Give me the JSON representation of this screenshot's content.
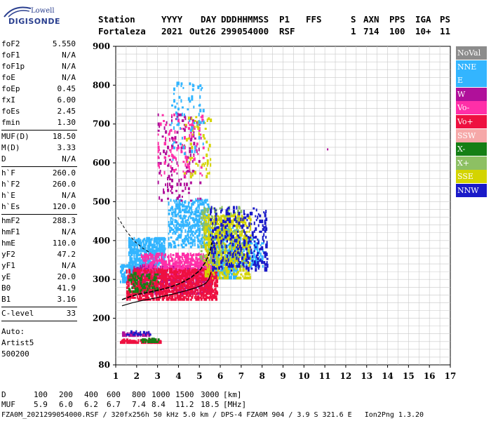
{
  "logo": {
    "line1": "Lowell",
    "line2": "DIGISONDE"
  },
  "header": {
    "row1": [
      "Station",
      "YYYY",
      "DAY",
      "DDD",
      "HHMMSS",
      "P1",
      "FFS",
      "S",
      "AXN",
      "PPS",
      "IGA",
      "PS"
    ],
    "row2": [
      "Fortaleza",
      "2021",
      "Out26",
      "299",
      "054000",
      "RSF",
      "",
      "1",
      "714",
      "100",
      "10+",
      "11"
    ]
  },
  "params": {
    "group1": [
      {
        "name": "foF2",
        "value": "5.550"
      },
      {
        "name": "foF1",
        "value": "N/A"
      },
      {
        "name": "foF1p",
        "value": "N/A"
      },
      {
        "name": "foE",
        "value": "N/A"
      },
      {
        "name": "foEp",
        "value": "0.45"
      },
      {
        "name": "fxI",
        "value": "6.00"
      },
      {
        "name": "foEs",
        "value": "2.45"
      },
      {
        "name": "fmin",
        "value": "1.30"
      }
    ],
    "group2": [
      {
        "name": "MUF(D)",
        "value": "18.50"
      },
      {
        "name": "M(D)",
        "value": "3.33"
      },
      {
        "name": "D",
        "value": "N/A"
      }
    ],
    "group3": [
      {
        "name": "h`F",
        "value": "260.0"
      },
      {
        "name": "h`F2",
        "value": "260.0"
      },
      {
        "name": "h`E",
        "value": "N/A"
      },
      {
        "name": "h`Es",
        "value": "120.0"
      }
    ],
    "group4": [
      {
        "name": "hmF2",
        "value": "288.3"
      },
      {
        "name": "hmF1",
        "value": "N/A"
      },
      {
        "name": "hmE",
        "value": "110.0"
      },
      {
        "name": "yF2",
        "value": "47.2"
      },
      {
        "name": "yF1",
        "value": "N/A"
      },
      {
        "name": "yE",
        "value": "20.0"
      },
      {
        "name": "B0",
        "value": "41.9"
      },
      {
        "name": "B1",
        "value": "3.16"
      }
    ],
    "clevel": {
      "name": "C-level",
      "value": "33"
    },
    "auto": [
      "Auto:",
      "Artist5",
      "500200"
    ]
  },
  "legend": [
    {
      "label": "NoVal",
      "color": "#8c8c8c"
    },
    {
      "label": "NNE",
      "color": "#33b5ff"
    },
    {
      "label": "E",
      "color": "#33b5ff"
    },
    {
      "label": "W",
      "color": "#b0109a"
    },
    {
      "label": "Vo-",
      "color": "#ff2fa8"
    },
    {
      "label": "Vo+",
      "color": "#ee1040"
    },
    {
      "label": "SSW",
      "color": "#f6a8a8"
    },
    {
      "label": "X-",
      "color": "#157f15"
    },
    {
      "label": "X+",
      "color": "#8dc063"
    },
    {
      "label": "SSE",
      "color": "#d4d400"
    },
    {
      "label": "NNW",
      "color": "#1a1ac8"
    }
  ],
  "footer": {
    "d_label": "D",
    "d_values": [
      "100",
      "200",
      "400",
      "600",
      "800",
      "1000",
      "1500",
      "3000",
      "[km]"
    ],
    "muf_label": "MUF",
    "muf_values": [
      "5.9",
      "6.0",
      "6.2",
      "6.7",
      "7.4",
      "8.4",
      "11.2",
      "18.5",
      "[MHz]"
    ],
    "info": "FZA0M_2021299054000.RSF / 320fx256h 50 kHz 5.0 km / DPS-4 FZA0M 904 / 3.9 S 321.6 E   Ion2Png 1.3.20"
  },
  "chart_data": {
    "type": "scatter",
    "title": "",
    "xlabel": "",
    "ylabel": "",
    "xlim": [
      1,
      17
    ],
    "ylim": [
      80,
      900
    ],
    "xticks": [
      "1",
      "2",
      "3",
      "4",
      "5",
      "6",
      "7",
      "8",
      "9",
      "10",
      "11",
      "12",
      "13",
      "14",
      "15",
      "16",
      "17"
    ],
    "yticks": [
      "80",
      "200",
      "300",
      "400",
      "500",
      "600",
      "700",
      "800",
      "900"
    ],
    "grid": true,
    "profile_curve": {
      "x": [
        1.3,
        1.8,
        2.3,
        2.8,
        3.3,
        3.8,
        4.3,
        4.8,
        5.1,
        5.3,
        5.45,
        5.55
      ],
      "y": [
        232,
        240,
        246,
        251,
        257,
        263,
        270,
        278,
        284,
        290,
        300,
        318
      ]
    },
    "trace_curve": {
      "x": [
        1.3,
        1.7,
        2.1,
        2.6,
        3.1,
        3.6,
        4.1,
        4.6,
        5.0,
        5.3,
        5.5,
        5.6
      ],
      "y": [
        248,
        256,
        262,
        267,
        273,
        280,
        290,
        305,
        322,
        345,
        370,
        395
      ]
    },
    "dashed_curve": {
      "x": [
        1.1,
        1.5,
        1.9,
        2.3,
        2.6
      ],
      "y": [
        460,
        425,
        398,
        380,
        370
      ]
    },
    "clusters": [
      {
        "series": "NNE",
        "x": [
          1.6,
          3.3
        ],
        "y": [
          300,
          400
        ],
        "density": 0.65
      },
      {
        "series": "NNE",
        "x": [
          1.2,
          1.8
        ],
        "y": [
          290,
          330
        ],
        "density": 0.55
      },
      {
        "series": "NNE",
        "x": [
          3.5,
          5.4
        ],
        "y": [
          380,
          500
        ],
        "density": 0.35
      },
      {
        "series": "E",
        "x": [
          5.4,
          6.8
        ],
        "y": [
          300,
          430
        ],
        "density": 0.45
      },
      {
        "series": "E",
        "x": [
          6.8,
          8.0
        ],
        "y": [
          330,
          400
        ],
        "density": 0.3
      },
      {
        "series": "W",
        "x": [
          1.8,
          5.6
        ],
        "y": [
          260,
          330
        ],
        "density": 0.4
      },
      {
        "series": "W",
        "x": [
          3.0,
          5.0
        ],
        "y": [
          500,
          720
        ],
        "density": 0.06
      },
      {
        "series": "Vo-",
        "x": [
          2.2,
          5.6
        ],
        "y": [
          300,
          360
        ],
        "density": 0.45
      },
      {
        "series": "Vo-",
        "x": [
          3.0,
          5.2
        ],
        "y": [
          560,
          720
        ],
        "density": 0.06
      },
      {
        "series": "Vo+",
        "x": [
          1.5,
          5.8
        ],
        "y": [
          245,
          320
        ],
        "density": 0.55
      },
      {
        "series": "X-",
        "x": [
          1.6,
          3.0
        ],
        "y": [
          265,
          310
        ],
        "density": 0.2
      },
      {
        "series": "X+",
        "x": [
          5.0,
          7.0
        ],
        "y": [
          330,
          480
        ],
        "density": 0.2
      },
      {
        "series": "SSE",
        "x": [
          5.2,
          7.4
        ],
        "y": [
          300,
          460
        ],
        "density": 0.3
      },
      {
        "series": "SSE",
        "x": [
          4.2,
          5.5
        ],
        "y": [
          560,
          720
        ],
        "density": 0.05
      },
      {
        "series": "NNW",
        "x": [
          5.5,
          8.2
        ],
        "y": [
          320,
          480
        ],
        "density": 0.15
      },
      {
        "series": "NNE",
        "x": [
          3.6,
          5.2
        ],
        "y": [
          600,
          800
        ],
        "density": 0.05
      },
      {
        "series": "Vo+",
        "x": [
          1.2,
          3.1
        ],
        "y": [
          134,
          142
        ],
        "density": 0.85
      },
      {
        "series": "X-",
        "x": [
          2.2,
          3.0
        ],
        "y": [
          136,
          143
        ],
        "density": 0.7
      },
      {
        "series": "W",
        "x": [
          1.3,
          2.6
        ],
        "y": [
          152,
          160
        ],
        "density": 0.5
      },
      {
        "series": "NNW",
        "x": [
          1.3,
          2.6
        ],
        "y": [
          155,
          162
        ],
        "density": 0.3
      }
    ],
    "isolated_points": [
      {
        "series": "W",
        "x": 11.1,
        "y": 632
      }
    ]
  }
}
